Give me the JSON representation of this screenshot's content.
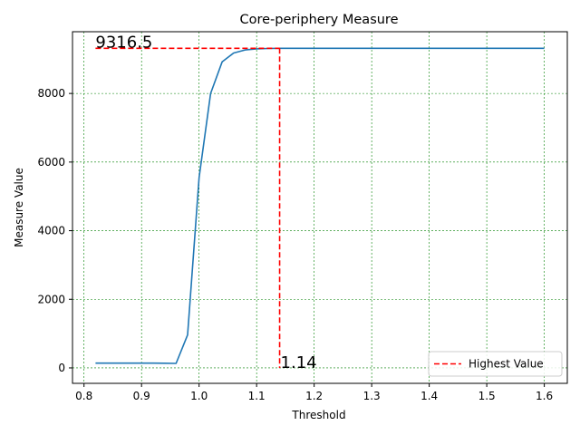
{
  "chart_data": {
    "type": "line",
    "title": "Core-periphery Measure",
    "xlabel": "Threshold",
    "ylabel": "Measure Value",
    "xlim": [
      0.78,
      1.64
    ],
    "ylim": [
      -450,
      9800
    ],
    "xticks": [
      0.8,
      0.9,
      1.0,
      1.1,
      1.2,
      1.3,
      1.4,
      1.5,
      1.6
    ],
    "xtick_labels": [
      "0.8",
      "0.9",
      "1.0",
      "1.1",
      "1.2",
      "1.3",
      "1.4",
      "1.5",
      "1.6"
    ],
    "yticks": [
      0,
      2000,
      4000,
      6000,
      8000
    ],
    "ytick_labels": [
      "0",
      "2000",
      "4000",
      "6000",
      "8000"
    ],
    "grid": true,
    "grid_color": "#008000",
    "legend_position": "lower-right",
    "series": [
      {
        "color": "#1f77b4",
        "x": [
          0.82,
          0.84,
          0.86,
          0.88,
          0.9,
          0.92,
          0.94,
          0.96,
          0.98,
          1.0,
          1.02,
          1.04,
          1.06,
          1.08,
          1.1,
          1.12,
          1.14,
          1.16,
          1.2,
          1.3,
          1.4,
          1.5,
          1.6
        ],
        "y": [
          140,
          140,
          140,
          140,
          140,
          138,
          136,
          130,
          960,
          5550,
          8000,
          8920,
          9180,
          9270,
          9300,
          9312,
          9316.5,
          9316.5,
          9316.5,
          9316.5,
          9316.5,
          9316.5,
          9316.5
        ]
      }
    ],
    "highlight": {
      "name": "Highest Value",
      "color": "#ff0000",
      "x": 1.14,
      "y": 9316.5,
      "x_start": 0.82,
      "x_label": "1.14",
      "y_label": "9316.5"
    }
  }
}
